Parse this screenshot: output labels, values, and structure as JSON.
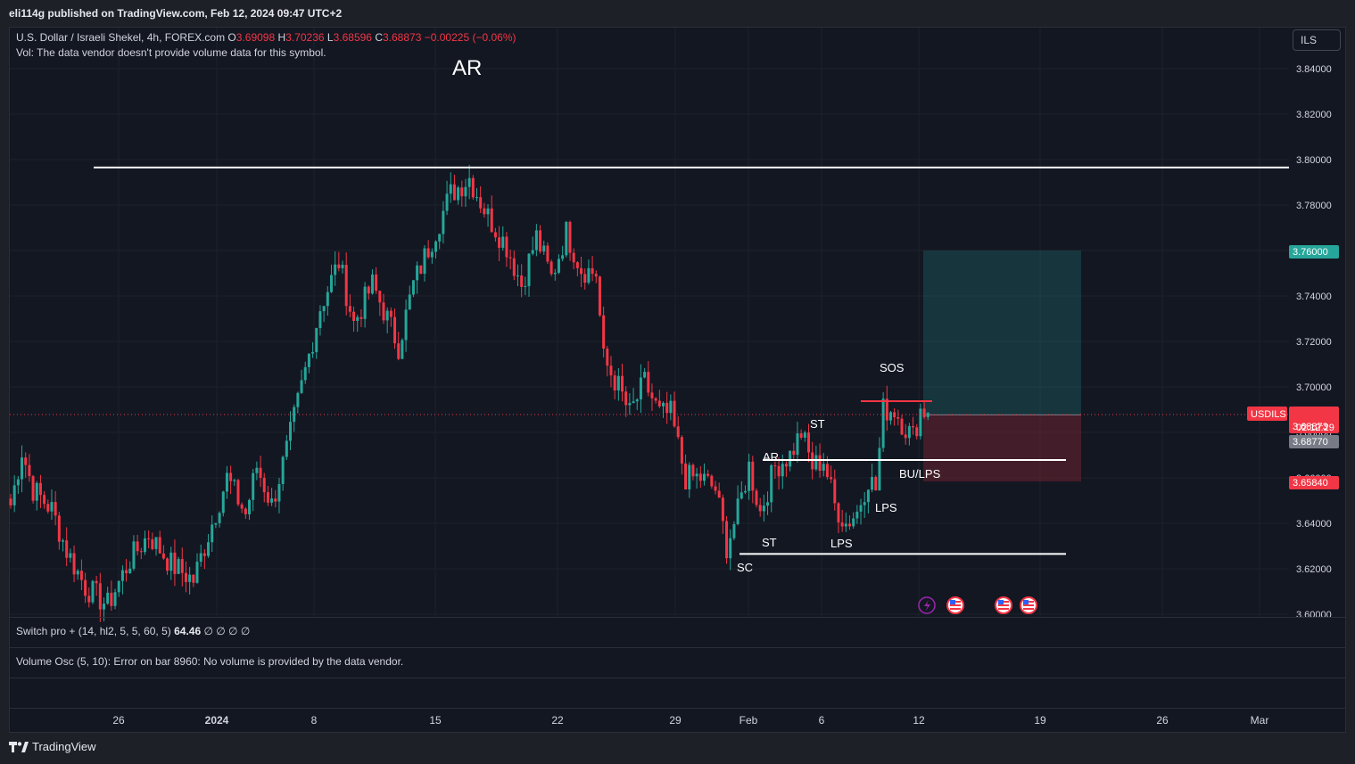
{
  "header": {
    "published": "eli114g published on TradingView.com, Feb 12, 2024 09:47 UTC+2"
  },
  "legend": {
    "symbol": "U.S. Dollar / Israeli Shekel, 4h, FOREX.com",
    "o_label": "O",
    "o": "3.69098",
    "h_label": "H",
    "h": "3.70236",
    "l_label": "L",
    "l": "3.68596",
    "c_label": "C",
    "c": "3.68873",
    "change": "−0.00225 (−0.06%)",
    "volume_note": "Vol: The data vendor doesn't provide volume data for this symbol."
  },
  "currency_button": "ILS",
  "indicators": {
    "switch_pro": {
      "name": "Switch pro + (14, hl2, 5, 5, 60, 5)",
      "value": "64.46",
      "extra": "∅ ∅ ∅ ∅"
    },
    "volume_osc": "Volume Osc (5, 10): Error on bar 8960: No volume is provided by the data vendor."
  },
  "footer": {
    "brand": "TradingView"
  },
  "colors": {
    "up": "#26a69a",
    "down": "#f23645",
    "bg": "#131722",
    "grid": "#1f2330",
    "target": "#26a69a",
    "stop": "#f23645"
  },
  "chart_data": {
    "type": "candlestick",
    "symbol": "USDILS",
    "timeframe": "4h",
    "y_ticks": [
      "3.84000",
      "3.82000",
      "3.80000",
      "3.78000",
      "3.76000",
      "3.74000",
      "3.72000",
      "3.70000",
      "3.68000",
      "3.66000",
      "3.64000",
      "3.62000",
      "3.60000"
    ],
    "x_ticks": [
      "26",
      "2024",
      "8",
      "15",
      "22",
      "29",
      "Feb",
      "6",
      "12",
      "19",
      "26",
      "Mar"
    ],
    "ylim": [
      3.6,
      3.845
    ],
    "price_tags": {
      "symbol_tag": "USDILS",
      "last": "3.68873",
      "countdown": "02:12:29",
      "entry": "3.68770",
      "target": "3.76000",
      "stop": "3.65840",
      "stop_partial": "3.65840"
    },
    "annotations": [
      "AR",
      "AR",
      "ST",
      "ST",
      "SC",
      "LPS",
      "LPS",
      "SOS",
      "BU/LPS"
    ],
    "levels": {
      "resistance": 3.7965,
      "ar_line": 3.6868,
      "sc_line": 3.6265,
      "sos_line": 3.695
    },
    "position": {
      "entry": 3.6877,
      "target": 3.76,
      "stop": 3.6584
    },
    "anchors": [
      {
        "t": 0,
        "p": 3.648
      },
      {
        "t": 3,
        "p": 3.672
      },
      {
        "t": 6,
        "p": 3.655
      },
      {
        "t": 11,
        "p": 3.646
      },
      {
        "t": 15,
        "p": 3.628
      },
      {
        "t": 20,
        "p": 3.612
      },
      {
        "t": 26,
        "p": 3.604
      },
      {
        "t": 32,
        "p": 3.624
      },
      {
        "t": 37,
        "p": 3.635
      },
      {
        "t": 43,
        "p": 3.622
      },
      {
        "t": 49,
        "p": 3.615
      },
      {
        "t": 54,
        "p": 3.64
      },
      {
        "t": 58,
        "p": 3.66
      },
      {
        "t": 63,
        "p": 3.644
      },
      {
        "t": 66,
        "p": 3.665
      },
      {
        "t": 70,
        "p": 3.648
      },
      {
        "t": 74,
        "p": 3.672
      },
      {
        "t": 78,
        "p": 3.7
      },
      {
        "t": 83,
        "p": 3.735
      },
      {
        "t": 88,
        "p": 3.755
      },
      {
        "t": 92,
        "p": 3.728
      },
      {
        "t": 97,
        "p": 3.745
      },
      {
        "t": 101,
        "p": 3.73
      },
      {
        "t": 104,
        "p": 3.718
      },
      {
        "t": 108,
        "p": 3.745
      },
      {
        "t": 113,
        "p": 3.765
      },
      {
        "t": 118,
        "p": 3.785
      },
      {
        "t": 123,
        "p": 3.792
      },
      {
        "t": 128,
        "p": 3.775
      },
      {
        "t": 133,
        "p": 3.762
      },
      {
        "t": 137,
        "p": 3.745
      },
      {
        "t": 141,
        "p": 3.766
      },
      {
        "t": 145,
        "p": 3.748
      },
      {
        "t": 149,
        "p": 3.768
      },
      {
        "t": 153,
        "p": 3.752
      },
      {
        "t": 157,
        "p": 3.75
      },
      {
        "t": 159,
        "p": 3.712
      },
      {
        "t": 163,
        "p": 3.7
      },
      {
        "t": 166,
        "p": 3.688
      },
      {
        "t": 170,
        "p": 3.702
      },
      {
        "t": 174,
        "p": 3.688
      },
      {
        "t": 177,
        "p": 3.688
      },
      {
        "t": 181,
        "p": 3.66
      },
      {
        "t": 185,
        "p": 3.66
      },
      {
        "t": 189,
        "p": 3.655
      },
      {
        "t": 192,
        "p": 3.63
      },
      {
        "t": 195,
        "p": 3.645
      },
      {
        "t": 198,
        "p": 3.665
      },
      {
        "t": 201,
        "p": 3.645
      },
      {
        "t": 205,
        "p": 3.665
      },
      {
        "t": 209,
        "p": 3.67
      },
      {
        "t": 212,
        "p": 3.68
      },
      {
        "t": 215,
        "p": 3.665
      },
      {
        "t": 218,
        "p": 3.668
      },
      {
        "t": 221,
        "p": 3.648
      },
      {
        "t": 224,
        "p": 3.64
      },
      {
        "t": 227,
        "p": 3.645
      },
      {
        "t": 230,
        "p": 3.66
      },
      {
        "t": 232,
        "p": 3.655
      },
      {
        "t": 234,
        "p": 3.69
      },
      {
        "t": 237,
        "p": 3.69
      },
      {
        "t": 240,
        "p": 3.682
      },
      {
        "t": 242,
        "p": 3.678
      },
      {
        "t": 244,
        "p": 3.69
      },
      {
        "t": 246,
        "p": 3.6887
      }
    ]
  }
}
